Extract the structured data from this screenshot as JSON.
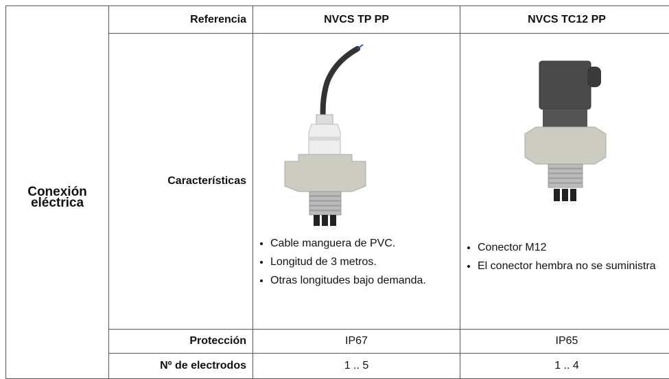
{
  "table": {
    "section": "Conexión eléctrica",
    "header": [
      "Referencia",
      "NVCS TP PP",
      "NVCS TC12 PP"
    ],
    "rows": [
      {
        "label": "Características",
        "cells": [
          [
            "Cable manguera de PVC.",
            "Longitud de 3 metros.",
            "Otras longitudes bajo demanda."
          ],
          [
            "Conector M12",
            "El conector hembra no se suministra"
          ]
        ]
      },
      {
        "label": "Protección",
        "cells": [
          "IP67",
          "IP65"
        ]
      },
      {
        "label": "Nº de electrodos",
        "cells": [
          "1 .. 5",
          "1 .. 4"
        ]
      }
    ]
  }
}
